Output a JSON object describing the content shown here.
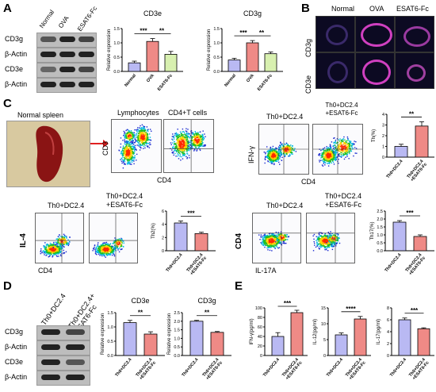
{
  "panels": {
    "A": "A",
    "B": "B",
    "C": "C",
    "D": "D",
    "E": "E"
  },
  "A": {
    "lanes": [
      "Normal",
      "OVA",
      "ESAT6-Fc"
    ],
    "blot_rows": [
      "CD3g",
      "β-Actin",
      "CD3e",
      "β-Actin"
    ],
    "charts": [
      {
        "title": "CD3e",
        "ylabel": "Relative expression",
        "categories": [
          "Normal",
          "OVA",
          "ESAT6-Fc"
        ],
        "values": [
          0.3,
          1.05,
          0.6
        ],
        "errors": [
          0.06,
          0.1,
          0.1
        ],
        "ylim": [
          0,
          1.5
        ],
        "ticks": [
          0.0,
          0.5,
          1.0,
          1.5
        ],
        "sig": [
          "***",
          "**"
        ],
        "colors": [
          "#b9b9f3",
          "#ef8a86",
          "#d8f0b0"
        ]
      },
      {
        "title": "CD3g",
        "ylabel": "Relative expression",
        "categories": [
          "Normal",
          "OVA",
          "ESAT6-Fc"
        ],
        "values": [
          0.4,
          1.0,
          0.62
        ],
        "errors": [
          0.06,
          0.08,
          0.06
        ],
        "ylim": [
          0,
          1.5
        ],
        "ticks": [
          0.0,
          0.5,
          1.0,
          1.5
        ],
        "sig": [
          "***",
          "**"
        ],
        "colors": [
          "#b9b9f3",
          "#ef8a86",
          "#d8f0b0"
        ]
      }
    ]
  },
  "B": {
    "columns": [
      "Normal",
      "OVA",
      "ESAT6-Fc"
    ],
    "rows": [
      "CD3g",
      "CD3e"
    ]
  },
  "C": {
    "spleen_label": "Normal spleen",
    "gate_titles": [
      "Lymphocytes",
      "CD4+T cells"
    ],
    "gate_axes": {
      "y": "CD3",
      "x": "CD4"
    },
    "th1": {
      "titles": [
        "Th0+DC2.4",
        "Th0+DC2.4\n+ESAT6-Fc"
      ],
      "y": "IFN-γ",
      "x": "CD4"
    },
    "th2": {
      "titles": [
        "Th0+DC2.4",
        "Th0+DC2.4\n+ESAT6-Fc"
      ],
      "y": "IL-4",
      "x": "CD4"
    },
    "th17": {
      "titles": [
        "Th0+DC2.4",
        "Th0+DC2.4\n+ESAT6-Fc"
      ],
      "y": "CD4",
      "x": "IL-17A"
    },
    "charts": [
      {
        "ylabel": "Th(%)",
        "categories": [
          "Th0+DC2.4",
          "Th0+DC2.4\n+ESAT6-Fc"
        ],
        "values": [
          1.0,
          2.9
        ],
        "errors": [
          0.2,
          0.4
        ],
        "ylim": [
          0,
          4
        ],
        "ticks": [
          0,
          1,
          2,
          3,
          4
        ],
        "sig": "**"
      },
      {
        "ylabel": "Th2(%)",
        "categories": [
          "Th0+DC2.4",
          "Th0+DC2.4\n+ESAT6-Fc"
        ],
        "values": [
          4.2,
          2.6
        ],
        "errors": [
          0.3,
          0.2
        ],
        "ylim": [
          0,
          6
        ],
        "ticks": [
          0,
          2,
          4,
          6
        ],
        "sig": "***"
      },
      {
        "ylabel": "Th17(%)",
        "categories": [
          "Th0+DC2.4",
          "Th0+DC2.4\n+ESAT6-Fc"
        ],
        "values": [
          1.8,
          0.9
        ],
        "errors": [
          0.1,
          0.1
        ],
        "ylim": [
          0,
          2.5
        ],
        "ticks": [
          0.0,
          0.5,
          1.0,
          1.5,
          2.0,
          2.5
        ],
        "sig": "***"
      }
    ]
  },
  "D": {
    "lanes": [
      "Th0+DC2.4",
      "Th0+DC2.4+\nESAT6-Fc"
    ],
    "blot_rows": [
      "CD3g",
      "β-Actin",
      "CD3e",
      "β-Actin"
    ],
    "charts": [
      {
        "title": "CD3e",
        "ylabel": "Relative expression",
        "categories": [
          "Th0+DC2.4",
          "Th0+DC2.4\n+ESAT6-Fc"
        ],
        "values": [
          1.15,
          0.75
        ],
        "errors": [
          0.08,
          0.08
        ],
        "ylim": [
          0,
          1.5
        ],
        "ticks": [
          0.0,
          0.5,
          1.0,
          1.5
        ],
        "sig": "**"
      },
      {
        "title": "CD3g",
        "ylabel": "Relative expression",
        "categories": [
          "Th0+DC2.4",
          "Th0+DC2.4\n+ESAT6-Fc"
        ],
        "values": [
          2.0,
          1.35
        ],
        "errors": [
          0.05,
          0.05
        ],
        "ylim": [
          0,
          2.5
        ],
        "ticks": [
          0.0,
          0.5,
          1.0,
          1.5,
          2.0,
          2.5
        ],
        "sig": "**"
      }
    ]
  },
  "E": {
    "charts": [
      {
        "ylabel": "IFN-γ(pg/ml)",
        "categories": [
          "Th0+DC2.4",
          "Th0+DC2.4\n+ESAT6-Fc"
        ],
        "values": [
          40,
          90
        ],
        "errors": [
          8,
          5
        ],
        "ylim": [
          0,
          100
        ],
        "ticks": [
          0,
          20,
          40,
          60,
          80,
          100
        ],
        "sig": "***"
      },
      {
        "ylabel": "IL-12(pg/ml)",
        "categories": [
          "Th0+DC2.4",
          "Th0+DC2.4\n+ESAT6-Fc"
        ],
        "values": [
          6.5,
          11.5
        ],
        "errors": [
          0.6,
          0.8
        ],
        "ylim": [
          0,
          15
        ],
        "ticks": [
          0,
          5,
          10,
          15
        ],
        "sig": "****"
      },
      {
        "ylabel": "IL-17(pg/ml)",
        "categories": [
          "Th0+DC2.4",
          "Th0+DC2.4\n+ESAT6-Fc"
        ],
        "values": [
          6.0,
          4.5
        ],
        "errors": [
          0.3,
          0.15
        ],
        "ylim": [
          0,
          8
        ],
        "ticks": [
          0,
          2,
          4,
          6,
          8
        ],
        "sig": "***"
      }
    ]
  },
  "colors": {
    "bar_a": "#b9b9f3",
    "bar_b": "#ef8a86",
    "bar_c": "#d8f0b0",
    "arrow": "#e02020"
  }
}
